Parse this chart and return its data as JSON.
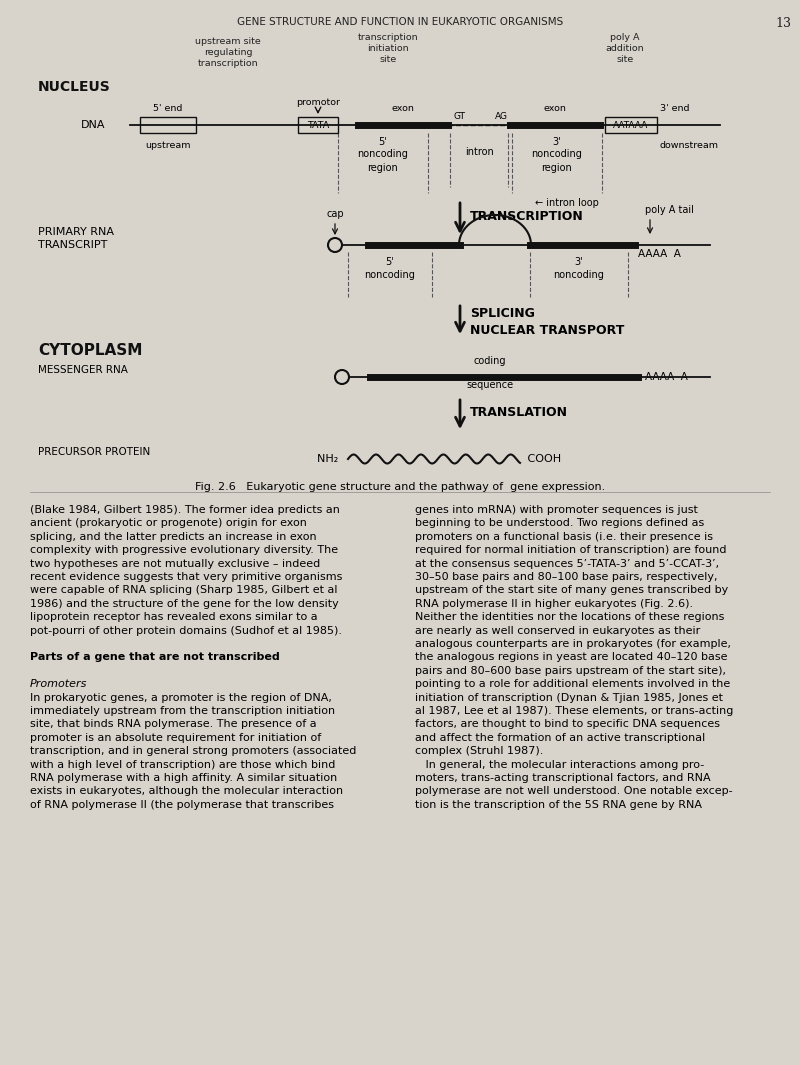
{
  "bg_color": "#d8d4cc",
  "title_text": "GENE STRUCTURE AND FUNCTION IN EUKARYOTIC ORGANISMS",
  "page_num": "13",
  "fig_caption": "Fig. 2.6   Eukaryotic gene structure and the pathway of  gene expression.",
  "body_left": "(Blake 1984, Gilbert 1985). The former idea predicts an\nancient (prokaryotic or progenote) origin for exon\nsplicing, and the latter predicts an increase in exon\ncomplexity with progressive evolutionary diversity. The\ntwo hypotheses are not mutually exclusive – indeed\nrecent evidence suggests that very primitive organisms\nwere capable of RNA splicing (Sharp 1985, Gilbert et al\n1986) and the structure of the gene for the low density\nlipoprotein receptor has revealed exons similar to a\npot-pourri of other protein domains (Sudhof et al 1985).\n\nParts of a gene that are not transcribed\n\nPromoters\nIn prokaryotic genes, a promoter is the region of DNA,\nimmediately upstream from the transcription initiation\nsite, that binds RNA polymerase. The presence of a\npromoter is an absolute requirement for initiation of\ntranscription, and in general strong promoters (associated\nwith a high level of transcription) are those which bind\nRNA polymerase with a high affinity. A similar situation\nexists in eukaryotes, although the molecular interaction\nof RNA polymerase II (the polymerase that transcribes",
  "body_right": "genes into mRNA) with promoter sequences is just\nbeginning to be understood. Two regions defined as\npromoters on a functional basis (i.e. their presence is\nrequired for normal initiation of transcription) are found\nat the consensus sequences 5’-TATA-3’ and 5’-CCAT-3’,\n30–50 base pairs and 80–100 base pairs, respectively,\nupstream of the start site of many genes transcribed by\nRNA polymerase II in higher eukaryotes (Fig. 2.6).\nNeither the identities nor the locations of these regions\nare nearly as well conserved in eukaryotes as their\nanalogous counterparts are in prokaryotes (for example,\nthe analogous regions in yeast are located 40–120 base\npairs and 80–600 base pairs upstream of the start site),\npointing to a role for additional elements involved in the\ninitiation of transcription (Dynan & Tjian 1985, Jones et\nal 1987, Lee et al 1987). These elements, or trans-acting\nfactors, are thought to bind to specific DNA sequences\nand affect the formation of an active transcriptional\ncomplex (Struhl 1987).\n   In general, the molecular interactions among pro-\nmoters, trans-acting transcriptional factors, and RNA\npolymerase are not well understood. One notable excep-\ntion is the transcription of the 5S RNA gene by RNA"
}
